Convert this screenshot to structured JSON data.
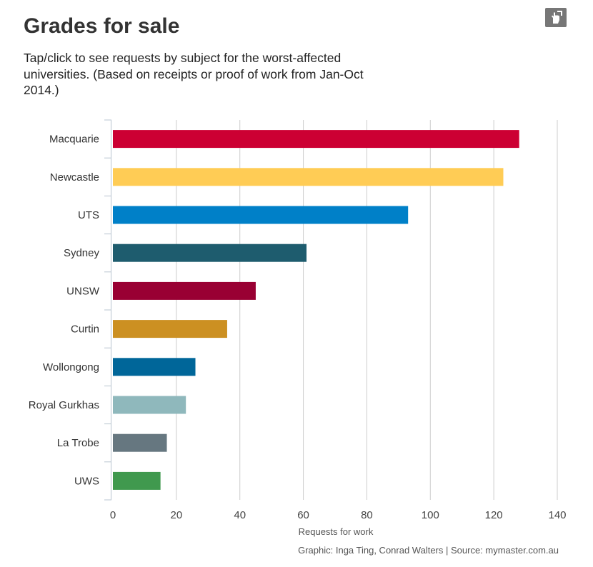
{
  "header": {
    "title": "Grades for sale",
    "subtitle": "Tap/click to see requests by subject for the worst-affected universities. (Based on receipts or proof of work from Jan-Oct 2014.)",
    "share_icon": "share-pointer-icon"
  },
  "footer": {
    "credit": "Graphic: Inga Ting, Conrad Walters | Source: mymaster.com.au"
  },
  "chart_data": {
    "type": "bar",
    "orientation": "horizontal",
    "title": "Grades for sale",
    "xlabel": "Requests for work",
    "ylabel": "",
    "xlim": [
      0,
      140
    ],
    "xticks": [
      0,
      20,
      40,
      60,
      80,
      100,
      120,
      140
    ],
    "grid": true,
    "categories": [
      "Macquarie",
      "Newcastle",
      "UTS",
      "Sydney",
      "UNSW",
      "Curtin",
      "Wollongong",
      "Royal Gurkhas",
      "La Trobe",
      "UWS"
    ],
    "values": [
      128,
      123,
      93,
      61,
      45,
      36,
      26,
      23,
      17,
      15
    ],
    "colors": [
      "#cc0033",
      "#ffcc55",
      "#0080c8",
      "#1e5c6e",
      "#990033",
      "#cc9022",
      "#006699",
      "#8fb8bc",
      "#667780",
      "#40994e"
    ]
  }
}
